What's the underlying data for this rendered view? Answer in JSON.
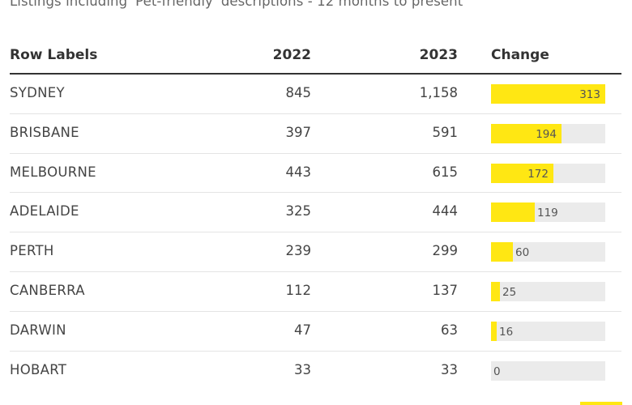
{
  "subtitle": "Listings including 'Pet-friendly' descriptions - 12 months to present",
  "table": {
    "headers": {
      "label": "Row Labels",
      "y2022": "2022",
      "y2023": "2023",
      "change": "Change"
    }
  },
  "colors": {
    "bar_fill": "#ffe713",
    "bar_track": "#ebebeb",
    "header_rule": "#333333"
  },
  "chart_data": {
    "type": "table",
    "columns": [
      "Row Labels",
      "2022",
      "2023",
      "Change"
    ],
    "change_max": 313,
    "rows": [
      {
        "label": "SYDNEY",
        "y2022": "845",
        "y2023": "1,158",
        "change": 313
      },
      {
        "label": "BRISBANE",
        "y2022": "397",
        "y2023": "591",
        "change": 194
      },
      {
        "label": "MELBOURNE",
        "y2022": "443",
        "y2023": "615",
        "change": 172
      },
      {
        "label": "ADELAIDE",
        "y2022": "325",
        "y2023": "444",
        "change": 119
      },
      {
        "label": "PERTH",
        "y2022": "239",
        "y2023": "299",
        "change": 60
      },
      {
        "label": "CANBERRA",
        "y2022": "112",
        "y2023": "137",
        "change": 25
      },
      {
        "label": "DARWIN",
        "y2022": "47",
        "y2023": "63",
        "change": 16
      },
      {
        "label": "HOBART",
        "y2022": "33",
        "y2023": "33",
        "change": 0
      }
    ]
  }
}
